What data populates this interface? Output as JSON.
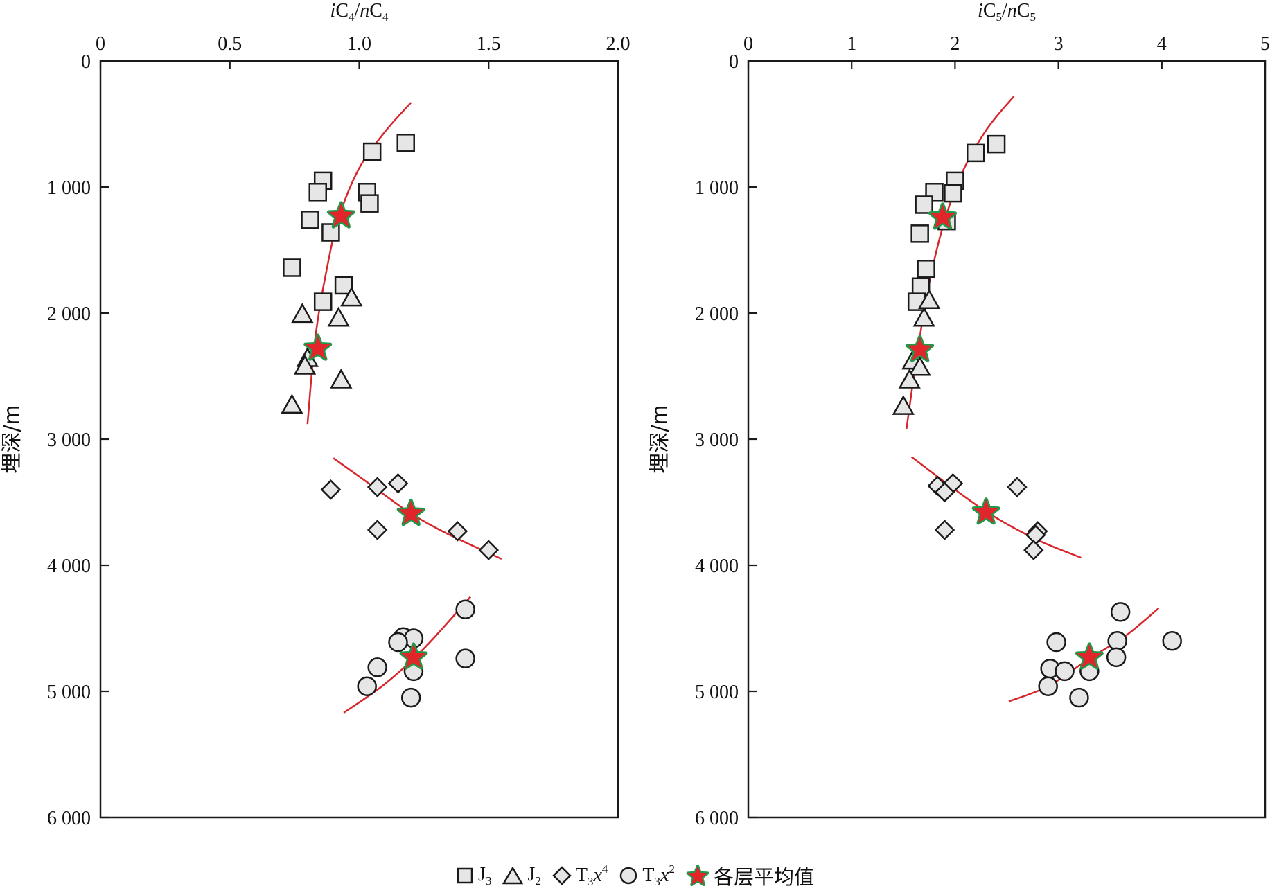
{
  "chart_data": [
    {
      "type": "scatter",
      "title": "",
      "xlabel": "iC4/nC4",
      "xlabel_parts": {
        "pre": "i",
        "a": "C",
        "a_sub": "4",
        "slash": "/",
        "mid": "n",
        "b": "C",
        "b_sub": "4"
      },
      "ylabel": "埋深/m",
      "xlim": [
        0,
        2.0
      ],
      "ylim": [
        0,
        6000
      ],
      "y_inverted": true,
      "x_axis_position": "top",
      "grid": false,
      "xticks": [
        0,
        0.5,
        1.0,
        1.5,
        2.0
      ],
      "xtick_labels": [
        "0",
        "0.5",
        "1.0",
        "1.5",
        "2.0"
      ],
      "yticks": [
        0,
        1000,
        2000,
        3000,
        4000,
        5000,
        6000
      ],
      "ytick_labels": [
        "0",
        "1 000",
        "2 000",
        "3 000",
        "4 000",
        "5 000",
        "6 000"
      ],
      "series": [
        {
          "name": "J3",
          "marker": "square",
          "points": [
            [
              1.18,
              650
            ],
            [
              1.05,
              720
            ],
            [
              0.86,
              950
            ],
            [
              0.84,
              1040
            ],
            [
              1.03,
              1040
            ],
            [
              1.04,
              1130
            ],
            [
              0.81,
              1260
            ],
            [
              0.89,
              1360
            ],
            [
              0.74,
              1640
            ],
            [
              0.94,
              1780
            ],
            [
              0.86,
              1910
            ]
          ]
        },
        {
          "name": "J2",
          "marker": "triangle",
          "points": [
            [
              0.97,
              1880
            ],
            [
              0.78,
              2010
            ],
            [
              0.92,
              2040
            ],
            [
              0.8,
              2360
            ],
            [
              0.79,
              2420
            ],
            [
              0.93,
              2530
            ],
            [
              0.74,
              2730
            ]
          ]
        },
        {
          "name": "T3x4",
          "marker": "diamond",
          "points": [
            [
              1.15,
              3350
            ],
            [
              0.89,
              3400
            ],
            [
              1.07,
              3380
            ],
            [
              1.07,
              3720
            ],
            [
              1.38,
              3730
            ],
            [
              1.5,
              3880
            ]
          ]
        },
        {
          "name": "T3x2",
          "marker": "circle",
          "points": [
            [
              1.41,
              4350
            ],
            [
              1.17,
              4570
            ],
            [
              1.21,
              4580
            ],
            [
              1.15,
              4610
            ],
            [
              1.41,
              4740
            ],
            [
              1.07,
              4810
            ],
            [
              1.21,
              4840
            ],
            [
              1.03,
              4960
            ],
            [
              1.2,
              5050
            ]
          ]
        },
        {
          "name": "各层平均值",
          "marker": "star",
          "points": [
            [
              0.93,
              1230
            ],
            [
              0.84,
              2280
            ],
            [
              1.2,
              3590
            ],
            [
              1.21,
              4730
            ]
          ]
        }
      ],
      "trend_lines": [
        [
          [
            1.2,
            330
          ],
          [
            1.1,
            560
          ],
          [
            1.0,
            850
          ],
          [
            0.92,
            1250
          ],
          [
            0.87,
            1700
          ],
          [
            0.83,
            2200
          ],
          [
            0.8,
            2880
          ]
        ],
        [
          [
            0.9,
            3150
          ],
          [
            1.05,
            3370
          ],
          [
            1.2,
            3590
          ],
          [
            1.35,
            3760
          ],
          [
            1.55,
            3950
          ]
        ],
        [
          [
            0.94,
            5170
          ],
          [
            1.1,
            4940
          ],
          [
            1.25,
            4660
          ],
          [
            1.43,
            4250
          ]
        ]
      ]
    },
    {
      "type": "scatter",
      "title": "",
      "xlabel": "iC5/nC5",
      "xlabel_parts": {
        "pre": "i",
        "a": "C",
        "a_sub": "5",
        "slash": "/",
        "mid": "n",
        "b": "C",
        "b_sub": "5"
      },
      "ylabel": "埋深/m",
      "xlim": [
        0,
        5
      ],
      "ylim": [
        0,
        6000
      ],
      "y_inverted": true,
      "x_axis_position": "top",
      "grid": false,
      "xticks": [
        0,
        1,
        2,
        3,
        4,
        5
      ],
      "xtick_labels": [
        "0",
        "1",
        "2",
        "3",
        "4",
        "5"
      ],
      "yticks": [
        0,
        1000,
        2000,
        3000,
        4000,
        5000,
        6000
      ],
      "ytick_labels": [
        "0",
        "1 000",
        "2 000",
        "3 000",
        "4 000",
        "5 000",
        "6 000"
      ],
      "series": [
        {
          "name": "J3",
          "marker": "square",
          "points": [
            [
              2.4,
              660
            ],
            [
              2.2,
              730
            ],
            [
              2.0,
              950
            ],
            [
              1.8,
              1040
            ],
            [
              1.98,
              1050
            ],
            [
              1.7,
              1140
            ],
            [
              1.92,
              1270
            ],
            [
              1.66,
              1370
            ],
            [
              1.72,
              1650
            ],
            [
              1.67,
              1790
            ],
            [
              1.63,
              1910
            ]
          ]
        },
        {
          "name": "J2",
          "marker": "triangle",
          "points": [
            [
              1.75,
              1900
            ],
            [
              1.7,
              2040
            ],
            [
              1.59,
              2380
            ],
            [
              1.66,
              2430
            ],
            [
              1.56,
              2530
            ],
            [
              1.5,
              2740
            ]
          ]
        },
        {
          "name": "T3x4",
          "marker": "diamond",
          "points": [
            [
              1.83,
              3370
            ],
            [
              1.98,
              3350
            ],
            [
              1.9,
              3420
            ],
            [
              2.6,
              3380
            ],
            [
              1.9,
              3720
            ],
            [
              2.8,
              3730
            ],
            [
              2.78,
              3760
            ],
            [
              2.76,
              3880
            ]
          ]
        },
        {
          "name": "T3x2",
          "marker": "circle",
          "points": [
            [
              3.6,
              4370
            ],
            [
              2.98,
              4610
            ],
            [
              3.57,
              4600
            ],
            [
              4.1,
              4600
            ],
            [
              3.56,
              4730
            ],
            [
              2.92,
              4820
            ],
            [
              3.06,
              4840
            ],
            [
              3.3,
              4840
            ],
            [
              2.9,
              4960
            ],
            [
              3.2,
              5050
            ]
          ]
        },
        {
          "name": "各层平均值",
          "marker": "star",
          "points": [
            [
              1.88,
              1240
            ],
            [
              1.66,
              2290
            ],
            [
              2.3,
              3580
            ],
            [
              3.3,
              4730
            ]
          ]
        }
      ],
      "trend_lines": [
        [
          [
            2.57,
            280
          ],
          [
            2.3,
            550
          ],
          [
            2.05,
            920
          ],
          [
            1.87,
            1350
          ],
          [
            1.73,
            1850
          ],
          [
            1.62,
            2400
          ],
          [
            1.53,
            2920
          ]
        ],
        [
          [
            1.58,
            3140
          ],
          [
            1.95,
            3370
          ],
          [
            2.35,
            3600
          ],
          [
            2.8,
            3800
          ],
          [
            3.22,
            3940
          ]
        ],
        [
          [
            2.52,
            5080
          ],
          [
            2.9,
            4960
          ],
          [
            3.3,
            4740
          ],
          [
            3.65,
            4560
          ],
          [
            3.97,
            4340
          ]
        ]
      ]
    }
  ],
  "legend": {
    "items": [
      {
        "label": "J",
        "sub": "3",
        "sup": "",
        "pre_sub": ""
      },
      {
        "label": "J",
        "sub": "2",
        "sup": "",
        "pre_sub": ""
      },
      {
        "label": "T",
        "sub": "3",
        "italic": "x",
        "sup": "4"
      },
      {
        "label": "T",
        "sub": "3",
        "italic": "x",
        "sup": "2"
      },
      {
        "label": "各层平均值"
      }
    ]
  },
  "colors": {
    "marker_fill": "#e6e6e6",
    "marker_stroke": "#1a1a1a",
    "trend_line": "#d7262b",
    "star_fill": "#e0262a",
    "star_outline": "#1f9a4b",
    "axis": "#1a1a1a"
  }
}
